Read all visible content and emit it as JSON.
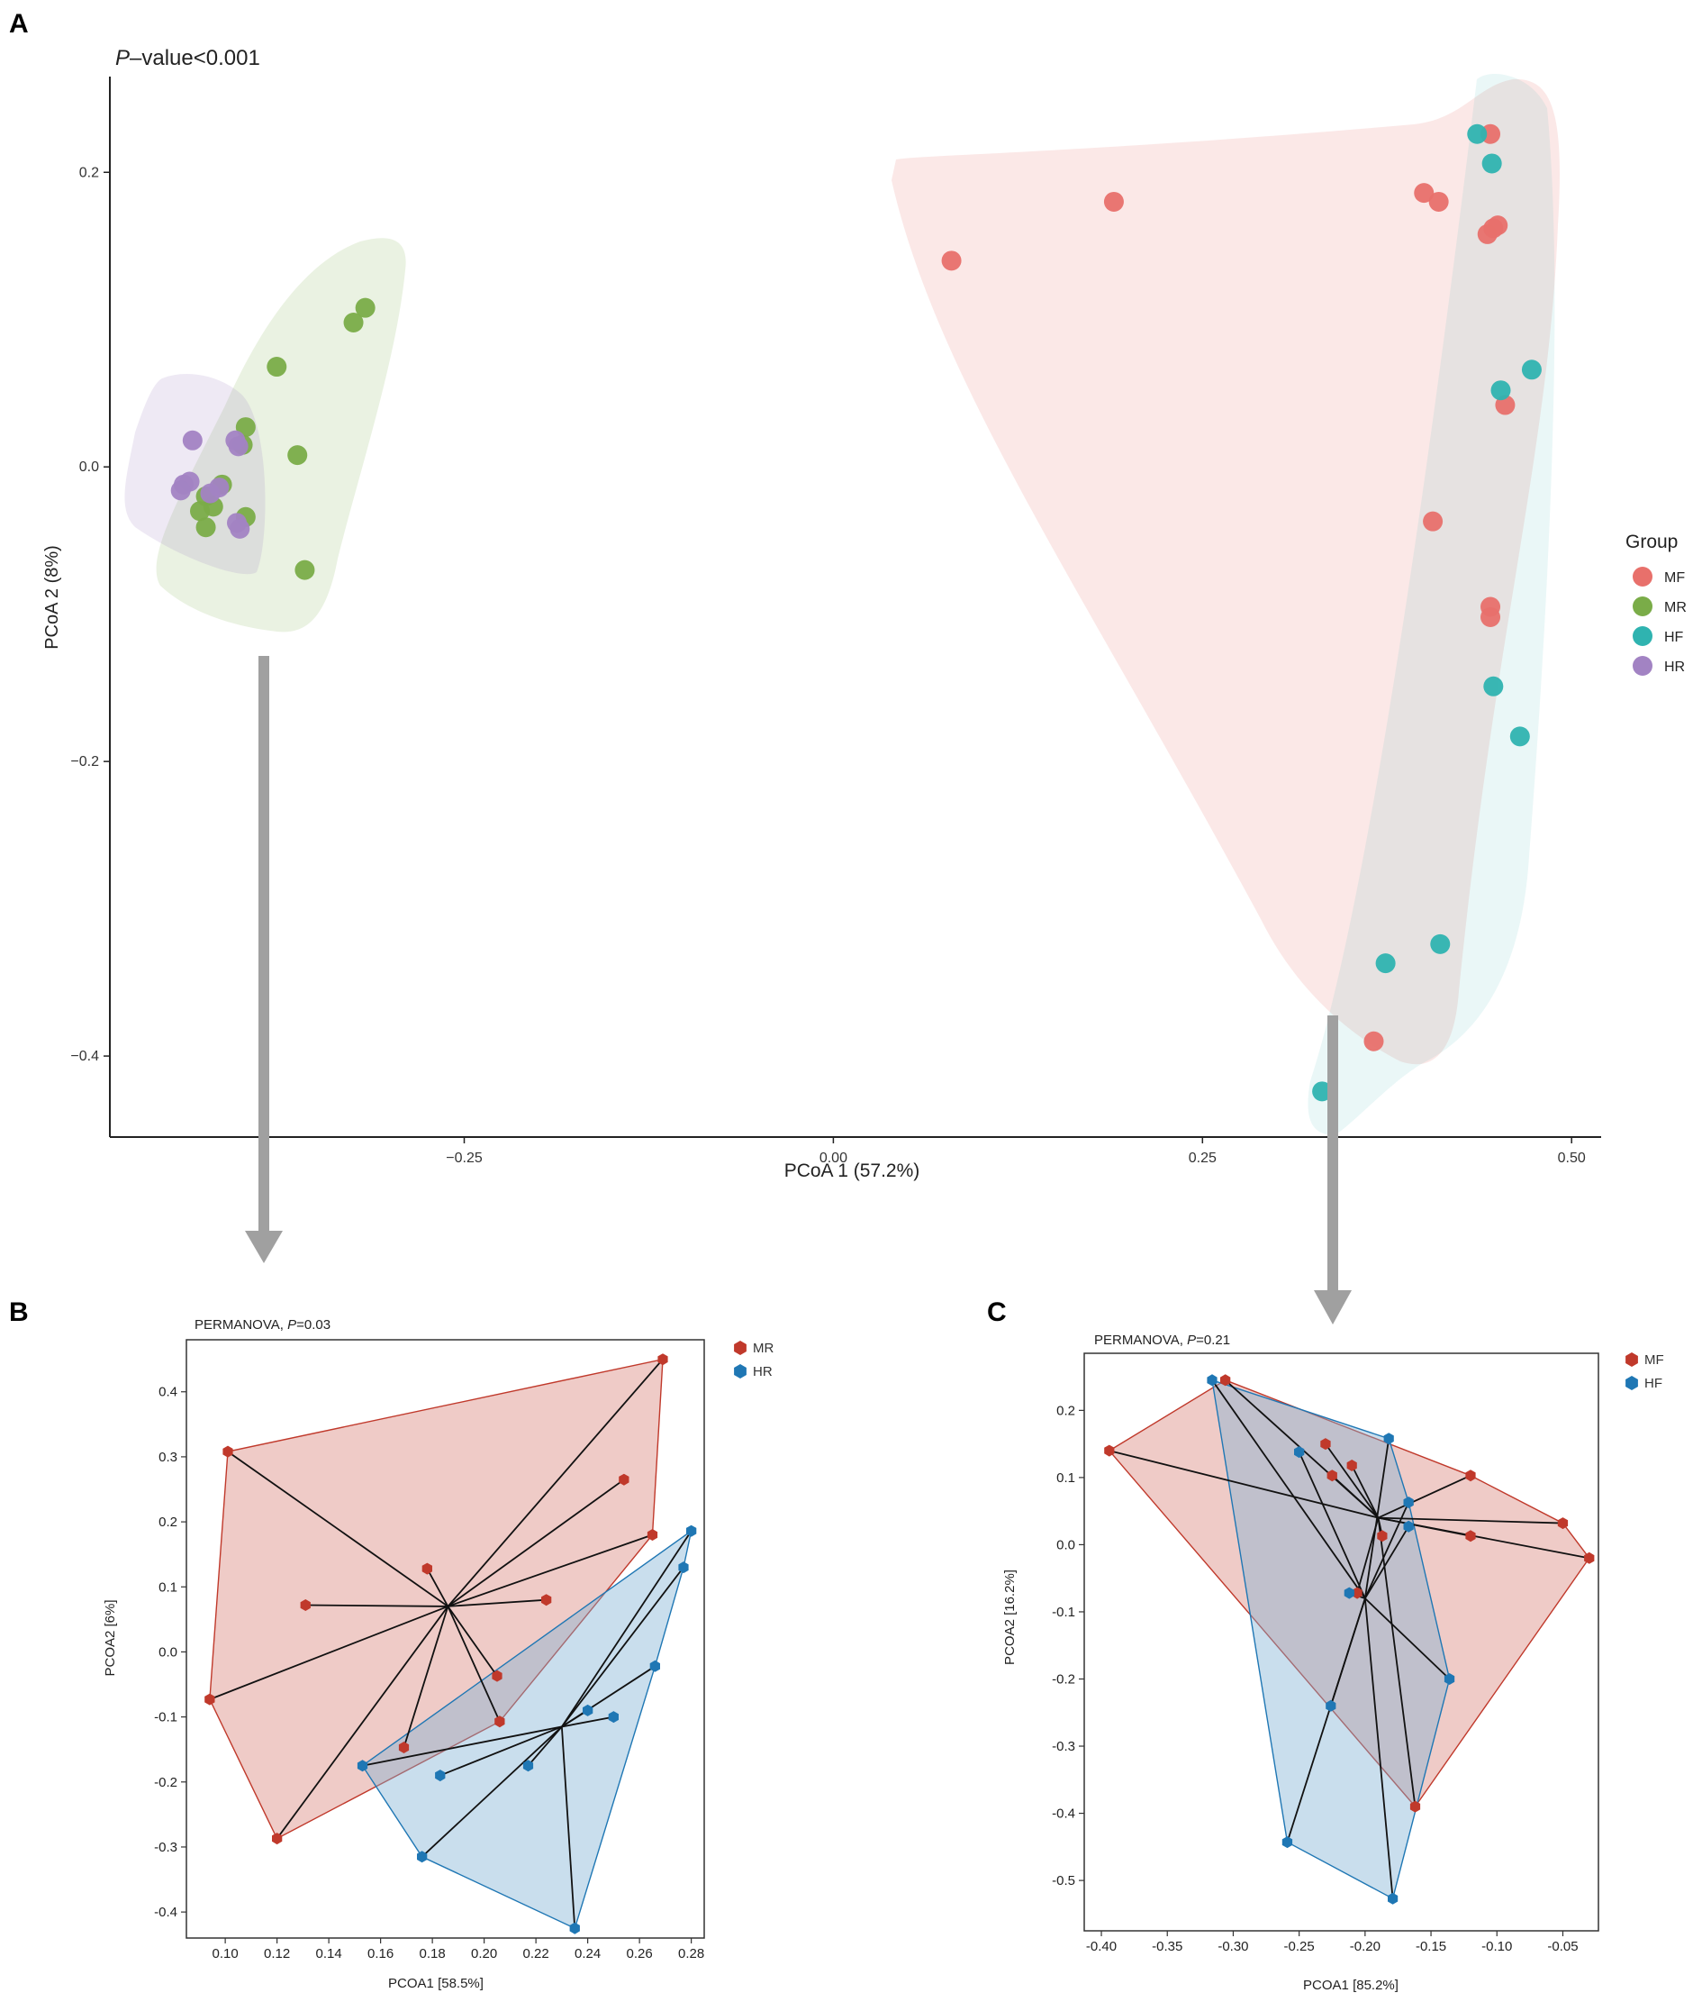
{
  "colors": {
    "MF": "#e8706b",
    "MR": "#7aac48",
    "HF": "#2fb3b0",
    "HR": "#a283c3",
    "red": "#c0392b",
    "blue": "#1f77b4",
    "arrow": "#a0a0a0"
  },
  "panel_labels": {
    "a": "A",
    "b": "B",
    "c": "C"
  },
  "chart_data": [
    {
      "id": "A",
      "type": "scatter",
      "annotation_prefix": "P",
      "annotation_rest": "–value<0.001",
      "xlabel": "PCoA 1 (57.2%)",
      "ylabel": "PCoA 2 (8%)",
      "xlim": [
        -0.49,
        0.52
      ],
      "ylim": [
        -0.455,
        0.265
      ],
      "xticks": [
        -0.25,
        0.0,
        0.25,
        0.5
      ],
      "xtick_labels": [
        "−0.25",
        "0.00",
        "0.25",
        "0.50"
      ],
      "yticks": [
        0.2,
        0.0,
        -0.2,
        -0.4
      ],
      "ytick_labels": [
        "0.2",
        "0.0",
        "−0.2",
        "−0.4"
      ],
      "legend_title": "Group",
      "legend_position": "right",
      "groups": [
        "MF",
        "MR",
        "HF",
        "HR"
      ],
      "series": [
        {
          "name": "MF",
          "points": [
            [
              0.08,
              0.14
            ],
            [
              0.19,
              0.18
            ],
            [
              0.4,
              0.186
            ],
            [
              0.41,
              0.18
            ],
            [
              0.445,
              0.226
            ],
            [
              0.443,
              0.158
            ],
            [
              0.447,
              0.162
            ],
            [
              0.45,
              0.164
            ],
            [
              0.455,
              0.042
            ],
            [
              0.406,
              -0.037
            ],
            [
              0.445,
              -0.095
            ],
            [
              0.445,
              -0.102
            ],
            [
              0.366,
              -0.39
            ]
          ]
        },
        {
          "name": "MR",
          "points": [
            [
              -0.317,
              0.108
            ],
            [
              -0.325,
              0.098
            ],
            [
              -0.377,
              0.068
            ],
            [
              -0.398,
              0.027
            ],
            [
              -0.4,
              0.015
            ],
            [
              -0.363,
              0.008
            ],
            [
              -0.414,
              -0.012
            ],
            [
              -0.425,
              -0.02
            ],
            [
              -0.42,
              -0.027
            ],
            [
              -0.429,
              -0.03
            ],
            [
              -0.398,
              -0.034
            ],
            [
              -0.425,
              -0.041
            ],
            [
              -0.358,
              -0.07
            ]
          ]
        },
        {
          "name": "HF",
          "points": [
            [
              0.436,
              0.226
            ],
            [
              0.446,
              0.206
            ],
            [
              0.473,
              0.066
            ],
            [
              0.452,
              0.052
            ],
            [
              0.447,
              -0.149
            ],
            [
              0.465,
              -0.183
            ],
            [
              0.411,
              -0.324
            ],
            [
              0.374,
              -0.337
            ],
            [
              0.331,
              -0.424
            ]
          ]
        },
        {
          "name": "HR",
          "points": [
            [
              -0.434,
              0.018
            ],
            [
              -0.405,
              0.018
            ],
            [
              -0.403,
              0.014
            ],
            [
              -0.44,
              -0.012
            ],
            [
              -0.436,
              -0.01
            ],
            [
              -0.442,
              -0.016
            ],
            [
              -0.422,
              -0.018
            ],
            [
              -0.416,
              -0.014
            ],
            [
              -0.404,
              -0.038
            ],
            [
              -0.402,
              -0.042
            ]
          ]
        }
      ]
    },
    {
      "id": "B",
      "type": "scatter",
      "title_prefix": "PERMANOVA, ",
      "title_p": "P",
      "title_rest": "=0.03",
      "xlabel": "PCOA1 [58.5%]",
      "ylabel": "PCOA2 [6%]",
      "xlim": [
        0.085,
        0.285
      ],
      "ylim": [
        -0.44,
        0.48
      ],
      "xticks": [
        0.1,
        0.12,
        0.14,
        0.16,
        0.18,
        0.2,
        0.22,
        0.24,
        0.26,
        0.28
      ],
      "xtick_labels": [
        "0.10",
        "0.12",
        "0.14",
        "0.16",
        "0.18",
        "0.20",
        "0.22",
        "0.24",
        "0.26",
        "0.28"
      ],
      "yticks": [
        0.4,
        0.3,
        0.2,
        0.1,
        0.0,
        -0.1,
        -0.2,
        -0.3,
        -0.4
      ],
      "ytick_labels": [
        "0.4",
        "0.3",
        "0.2",
        "0.1",
        "0.0",
        "-0.1",
        "-0.2",
        "-0.3",
        "-0.4"
      ],
      "legend_position": "top-right",
      "series": [
        {
          "name": "MR",
          "centroid": [
            0.186,
            0.07
          ],
          "points": [
            [
              0.269,
              0.45
            ],
            [
              0.101,
              0.308
            ],
            [
              0.254,
              0.265
            ],
            [
              0.265,
              0.18
            ],
            [
              0.178,
              0.128
            ],
            [
              0.131,
              0.072
            ],
            [
              0.224,
              0.08
            ],
            [
              0.094,
              -0.073
            ],
            [
              0.205,
              -0.037
            ],
            [
              0.206,
              -0.107
            ],
            [
              0.169,
              -0.147
            ],
            [
              0.12,
              -0.287
            ]
          ]
        },
        {
          "name": "HR",
          "centroid": [
            0.23,
            -0.115
          ],
          "points": [
            [
              0.28,
              0.186
            ],
            [
              0.277,
              0.13
            ],
            [
              0.266,
              -0.022
            ],
            [
              0.25,
              -0.1
            ],
            [
              0.24,
              -0.09
            ],
            [
              0.153,
              -0.175
            ],
            [
              0.183,
              -0.19
            ],
            [
              0.217,
              -0.175
            ],
            [
              0.176,
              -0.315
            ],
            [
              0.235,
              -0.425
            ]
          ]
        }
      ]
    },
    {
      "id": "C",
      "type": "scatter",
      "title_prefix": "PERMANOVA, ",
      "title_p": "P",
      "title_rest": "=0.21",
      "xlabel": "PCOA1 [85.2%]",
      "ylabel": "PCOA2 [16.2%]",
      "xlim": [
        -0.413,
        -0.023
      ],
      "ylim": [
        -0.575,
        0.285
      ],
      "xticks": [
        -0.4,
        -0.35,
        -0.3,
        -0.25,
        -0.2,
        -0.15,
        -0.1,
        -0.05
      ],
      "xtick_labels": [
        "-0.40",
        "-0.35",
        "-0.30",
        "-0.25",
        "-0.20",
        "-0.15",
        "-0.10",
        "-0.05"
      ],
      "yticks": [
        0.2,
        0.1,
        0.0,
        -0.1,
        -0.2,
        -0.3,
        -0.4,
        -0.5
      ],
      "ytick_labels": [
        "0.2",
        "0.1",
        "0.0",
        "-0.1",
        "-0.2",
        "-0.3",
        "-0.4",
        "-0.5"
      ],
      "legend_position": "top-right",
      "series": [
        {
          "name": "MF",
          "centroid": [
            -0.19,
            0.04
          ],
          "points": [
            [
              -0.306,
              0.245
            ],
            [
              -0.394,
              0.14
            ],
            [
              -0.12,
              0.103
            ],
            [
              -0.23,
              0.15
            ],
            [
              -0.21,
              0.118
            ],
            [
              -0.225,
              0.103
            ],
            [
              -0.05,
              0.032
            ],
            [
              -0.03,
              -0.02
            ],
            [
              -0.12,
              0.013
            ],
            [
              -0.187,
              0.013
            ],
            [
              -0.206,
              -0.072
            ],
            [
              -0.162,
              -0.39
            ]
          ]
        },
        {
          "name": "HF",
          "centroid": [
            -0.2,
            -0.08
          ],
          "points": [
            [
              -0.316,
              0.245
            ],
            [
              -0.182,
              0.158
            ],
            [
              -0.167,
              0.063
            ],
            [
              -0.167,
              0.027
            ],
            [
              -0.25,
              0.138
            ],
            [
              -0.212,
              -0.072
            ],
            [
              -0.136,
              -0.2
            ],
            [
              -0.226,
              -0.24
            ],
            [
              -0.259,
              -0.443
            ],
            [
              -0.179,
              -0.527
            ]
          ]
        }
      ]
    }
  ]
}
